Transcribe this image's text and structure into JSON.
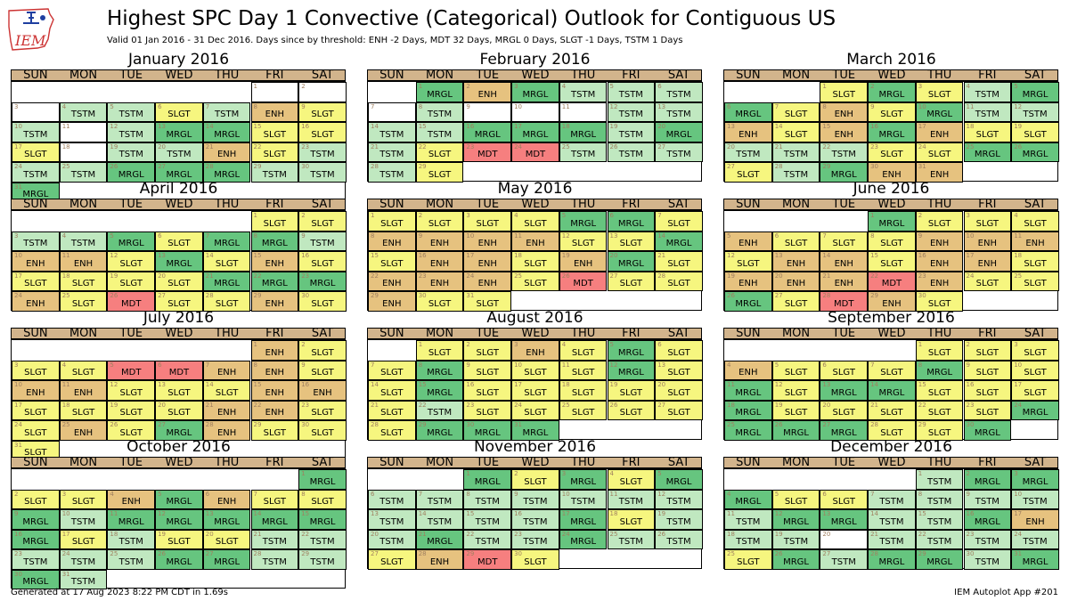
{
  "header": {
    "title": "Highest SPC Day 1 Convective (Categorical) Outlook for Contiguous US",
    "subtitle": "Valid 01 Jan 2016 - 31 Dec 2016. Days since by threshold: ENH -2 Days, MDT 32 Days, MRGL 0 Days, SLGT -1 Days, TSTM 1 Days",
    "logo_text": "IEM"
  },
  "footer": {
    "left": "Generated at 17 Aug 2023 8:22 PM CDT in 1.69s",
    "right": "IEM Autoplot App #201"
  },
  "weekdays": [
    "SUN",
    "MON",
    "TUE",
    "WED",
    "THU",
    "FRI",
    "SAT"
  ],
  "colors": {
    "TSTM": "#c0e8c0",
    "MRGL": "#66c57f",
    "SLGT": "#f6f67f",
    "ENH": "#e6c27f",
    "MDT": "#f67f7f",
    "NONE": "#ffffff",
    "header_band": "#d2b48c",
    "day_number": "#a08060"
  },
  "chart_data": {
    "type": "table",
    "title": "Highest SPC Day 1 Convective (Categorical) Outlook for Contiguous US",
    "categories": [
      "TSTM",
      "MRGL",
      "SLGT",
      "ENH",
      "MDT"
    ],
    "months": [
      {
        "name": "January 2016",
        "start_dow": 5,
        "days": [
          "",
          "",
          "",
          "TSTM",
          "TSTM",
          "SLGT",
          "TSTM",
          "ENH",
          "SLGT",
          "TSTM",
          "",
          "TSTM",
          "MRGL",
          "MRGL",
          "SLGT",
          "SLGT",
          "SLGT",
          "",
          "TSTM",
          "TSTM",
          "ENH",
          "SLGT",
          "TSTM",
          "TSTM",
          "TSTM",
          "MRGL",
          "MRGL",
          "MRGL",
          "TSTM",
          "TSTM",
          "MRGL"
        ]
      },
      {
        "name": "February 2016",
        "start_dow": 1,
        "days": [
          "MRGL",
          "ENH",
          "MRGL",
          "TSTM",
          "TSTM",
          "TSTM",
          "",
          "TSTM",
          "",
          "",
          "",
          "TSTM",
          "TSTM",
          "TSTM",
          "TSTM",
          "MRGL",
          "MRGL",
          "MRGL",
          "TSTM",
          "MRGL",
          "TSTM",
          "SLGT",
          "MDT",
          "MDT",
          "TSTM",
          "TSTM",
          "TSTM",
          "TSTM",
          "SLGT"
        ]
      },
      {
        "name": "March 2016",
        "start_dow": 2,
        "days": [
          "SLGT",
          "MRGL",
          "SLGT",
          "TSTM",
          "MRGL",
          "MRGL",
          "SLGT",
          "ENH",
          "SLGT",
          "MRGL",
          "TSTM",
          "TSTM",
          "ENH",
          "SLGT",
          "ENH",
          "MRGL",
          "ENH",
          "SLGT",
          "SLGT",
          "TSTM",
          "TSTM",
          "TSTM",
          "SLGT",
          "SLGT",
          "MRGL",
          "MRGL",
          "SLGT",
          "TSTM",
          "MRGL",
          "ENH",
          "ENH"
        ]
      },
      {
        "name": "April 2016",
        "start_dow": 5,
        "days": [
          "SLGT",
          "SLGT",
          "TSTM",
          "TSTM",
          "MRGL",
          "SLGT",
          "MRGL",
          "MRGL",
          "TSTM",
          "ENH",
          "ENH",
          "SLGT",
          "MRGL",
          "SLGT",
          "ENH",
          "SLGT",
          "SLGT",
          "SLGT",
          "SLGT",
          "SLGT",
          "MRGL",
          "MRGL",
          "MRGL",
          "ENH",
          "SLGT",
          "MDT",
          "SLGT",
          "SLGT",
          "ENH",
          "SLGT"
        ]
      },
      {
        "name": "May 2016",
        "start_dow": 0,
        "days": [
          "SLGT",
          "SLGT",
          "SLGT",
          "SLGT",
          "MRGL",
          "MRGL",
          "SLGT",
          "ENH",
          "ENH",
          "ENH",
          "ENH",
          "SLGT",
          "SLGT",
          "MRGL",
          "SLGT",
          "ENH",
          "ENH",
          "SLGT",
          "ENH",
          "MRGL",
          "SLGT",
          "ENH",
          "ENH",
          "ENH",
          "SLGT",
          "MDT",
          "SLGT",
          "SLGT",
          "ENH",
          "SLGT",
          "SLGT"
        ]
      },
      {
        "name": "June 2016",
        "start_dow": 3,
        "days": [
          "MRGL",
          "SLGT",
          "SLGT",
          "SLGT",
          "ENH",
          "SLGT",
          "SLGT",
          "SLGT",
          "ENH",
          "ENH",
          "ENH",
          "SLGT",
          "ENH",
          "ENH",
          "SLGT",
          "ENH",
          "ENH",
          "SLGT",
          "ENH",
          "ENH",
          "ENH",
          "MDT",
          "ENH",
          "SLGT",
          "SLGT",
          "MRGL",
          "SLGT",
          "MDT",
          "ENH",
          "SLGT"
        ]
      },
      {
        "name": "July 2016",
        "start_dow": 5,
        "days": [
          "ENH",
          "SLGT",
          "SLGT",
          "SLGT",
          "MDT",
          "MDT",
          "ENH",
          "ENH",
          "SLGT",
          "ENH",
          "ENH",
          "SLGT",
          "SLGT",
          "SLGT",
          "ENH",
          "ENH",
          "SLGT",
          "SLGT",
          "SLGT",
          "SLGT",
          "ENH",
          "ENH",
          "SLGT",
          "SLGT",
          "ENH",
          "SLGT",
          "MRGL",
          "ENH",
          "SLGT",
          "SLGT",
          "SLGT"
        ]
      },
      {
        "name": "August 2016",
        "start_dow": 1,
        "days": [
          "SLGT",
          "SLGT",
          "ENH",
          "SLGT",
          "MRGL",
          "SLGT",
          "SLGT",
          "MRGL",
          "SLGT",
          "SLGT",
          "SLGT",
          "MRGL",
          "SLGT",
          "SLGT",
          "MRGL",
          "SLGT",
          "SLGT",
          "SLGT",
          "SLGT",
          "SLGT",
          "SLGT",
          "TSTM",
          "SLGT",
          "SLGT",
          "SLGT",
          "SLGT",
          "SLGT",
          "SLGT",
          "MRGL",
          "MRGL",
          "MRGL"
        ]
      },
      {
        "name": "September 2016",
        "start_dow": 4,
        "days": [
          "SLGT",
          "SLGT",
          "SLGT",
          "ENH",
          "SLGT",
          "SLGT",
          "SLGT",
          "MRGL",
          "SLGT",
          "SLGT",
          "MRGL",
          "SLGT",
          "MRGL",
          "MRGL",
          "SLGT",
          "SLGT",
          "SLGT",
          "MRGL",
          "SLGT",
          "SLGT",
          "SLGT",
          "SLGT",
          "SLGT",
          "MRGL",
          "MRGL",
          "MRGL",
          "MRGL",
          "SLGT",
          "SLGT",
          "MRGL"
        ]
      },
      {
        "name": "October 2016",
        "start_dow": 6,
        "days": [
          "MRGL",
          "SLGT",
          "SLGT",
          "ENH",
          "MRGL",
          "ENH",
          "SLGT",
          "SLGT",
          "MRGL",
          "TSTM",
          "MRGL",
          "MRGL",
          "MRGL",
          "MRGL",
          "MRGL",
          "MRGL",
          "SLGT",
          "TSTM",
          "SLGT",
          "SLGT",
          "TSTM",
          "TSTM",
          "TSTM",
          "TSTM",
          "TSTM",
          "MRGL",
          "MRGL",
          "TSTM",
          "TSTM",
          "MRGL",
          "TSTM"
        ]
      },
      {
        "name": "November 2016",
        "start_dow": 2,
        "days": [
          "MRGL",
          "SLGT",
          "MRGL",
          "SLGT",
          "MRGL",
          "TSTM",
          "TSTM",
          "TSTM",
          "TSTM",
          "TSTM",
          "TSTM",
          "TSTM",
          "TSTM",
          "TSTM",
          "TSTM",
          "TSTM",
          "MRGL",
          "SLGT",
          "TSTM",
          "TSTM",
          "MRGL",
          "TSTM",
          "TSTM",
          "MRGL",
          "TSTM",
          "TSTM",
          "SLGT",
          "ENH",
          "MDT",
          "SLGT"
        ]
      },
      {
        "name": "December 2016",
        "start_dow": 4,
        "days": [
          "TSTM",
          "MRGL",
          "MRGL",
          "MRGL",
          "SLGT",
          "SLGT",
          "TSTM",
          "TSTM",
          "TSTM",
          "TSTM",
          "TSTM",
          "MRGL",
          "MRGL",
          "TSTM",
          "TSTM",
          "MRGL",
          "ENH",
          "TSTM",
          "TSTM",
          "",
          "TSTM",
          "TSTM",
          "TSTM",
          "TSTM",
          "SLGT",
          "MRGL",
          "TSTM",
          "MRGL",
          "MRGL",
          "TSTM",
          "MRGL"
        ]
      }
    ]
  }
}
